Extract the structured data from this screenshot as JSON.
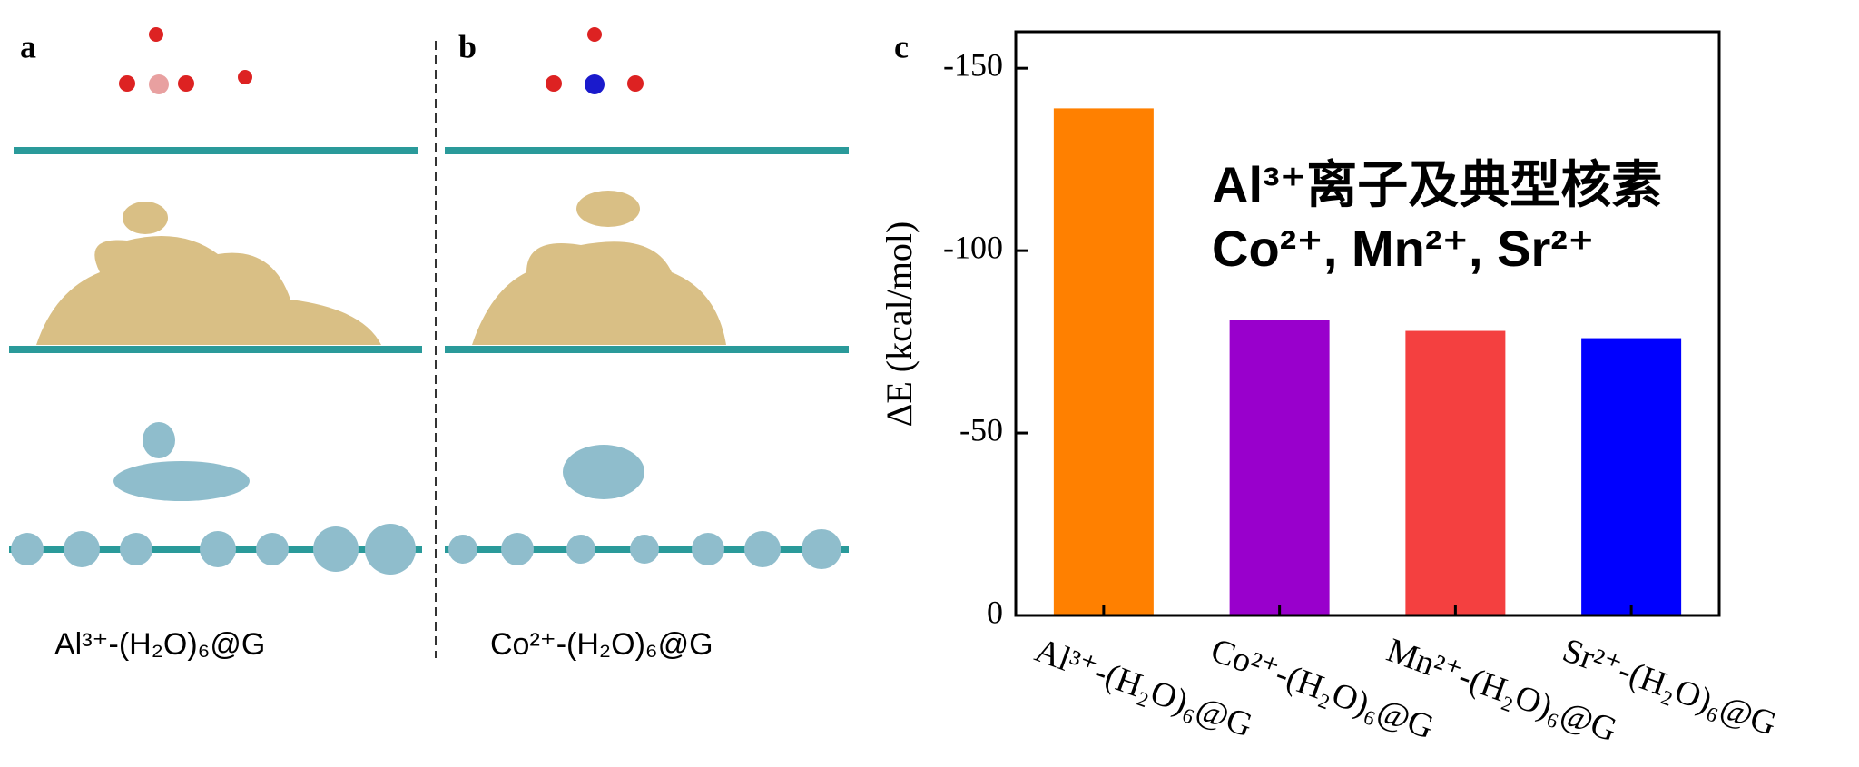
{
  "panel_labels": [
    "a",
    "b"
  ],
  "panel_captions": [
    "Al³⁺-(H₂O)₆@G",
    "Co²⁺-(H₂O)₆@G"
  ],
  "chart_data": {
    "type": "bar",
    "panel_label": "c",
    "y_label": "ΔE (kcal/mol)",
    "annotations": [
      "Al³⁺离子及典型核素",
      "Co²⁺, Mn²⁺, Sr²⁺"
    ],
    "categories": [
      "Al³⁺-(H₂O)₆@G",
      "Co²⁺-(H₂O)₆@G",
      "Mn²⁺-(H₂O)₆@G",
      "Sr²⁺-(H₂O)₆@G"
    ],
    "values": [
      -139,
      -81,
      -78,
      -76
    ],
    "colors": [
      "#ff8000",
      "#9900cc",
      "#f44040",
      "#0000ff"
    ],
    "ylim": [
      0,
      -160
    ],
    "yticks": [
      -150,
      -100,
      -50,
      0
    ],
    "grid": false
  }
}
